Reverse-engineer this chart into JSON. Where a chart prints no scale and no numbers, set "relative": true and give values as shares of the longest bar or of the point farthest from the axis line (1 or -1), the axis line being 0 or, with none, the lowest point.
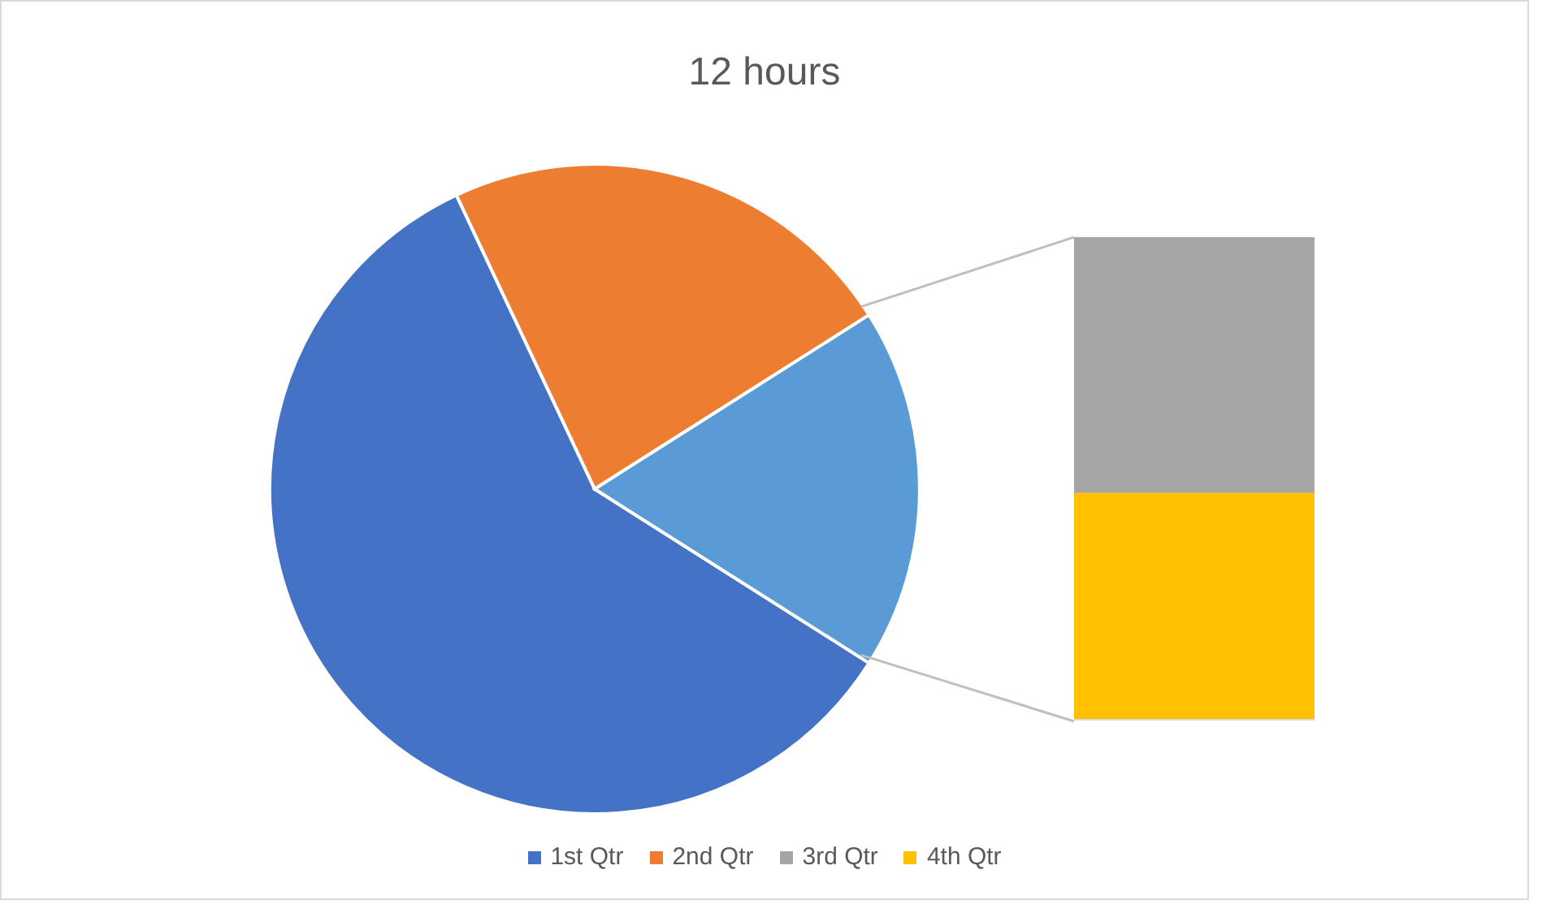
{
  "chart_data": [
    {
      "type": "pie",
      "title": "12 hours",
      "categories": [
        "1st Qtr",
        "2nd Qtr",
        null
      ],
      "values": [
        59,
        23,
        18
      ],
      "colors": [
        "#4472c4",
        "#ed7d31",
        "#5b9bd5"
      ],
      "legend": "bottom"
    },
    {
      "type": "bar",
      "stacked": true,
      "relative": true,
      "categories": [
        null
      ],
      "series": [
        {
          "name": "4th Qtr",
          "color": "#ffc000",
          "values": [
            0.47
          ]
        },
        {
          "name": "3rd Qtr",
          "color": "#a5a5a5",
          "values": [
            0.53
          ]
        }
      ],
      "legend": "bottom"
    }
  ]
}
